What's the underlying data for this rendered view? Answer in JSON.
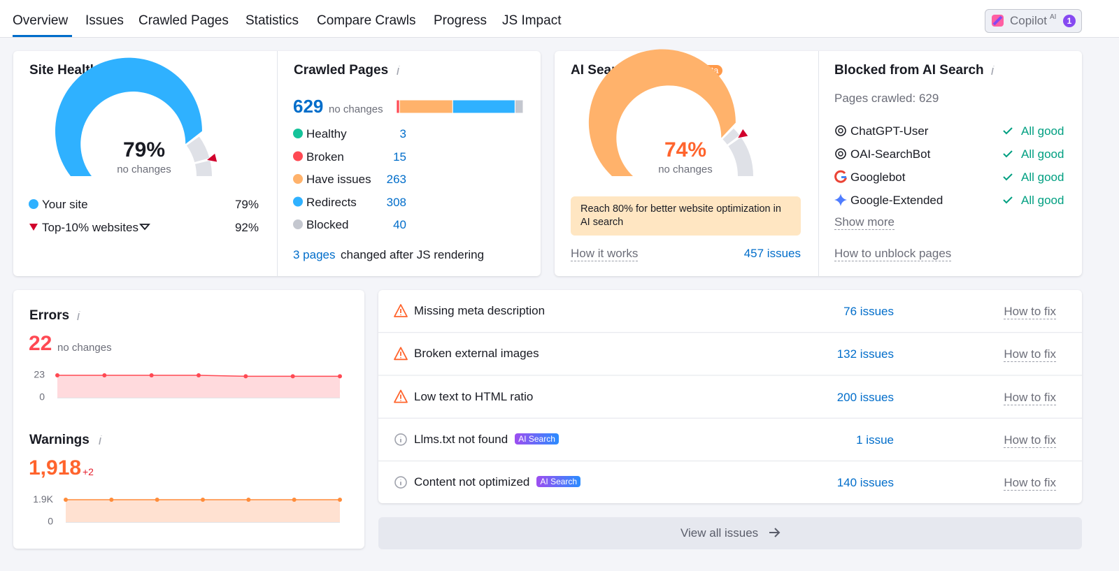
{
  "tabs": [
    "Overview",
    "Issues",
    "Crawled Pages",
    "Statistics",
    "Compare Crawls",
    "Progress",
    "JS Impact"
  ],
  "copilot": {
    "label": "Copilot",
    "sup": "AI",
    "badge": 1
  },
  "site_health": {
    "title": "Site Health",
    "score": 79,
    "score_label": "79%",
    "change": "no changes",
    "color": "#2fb1ff",
    "legend": [
      {
        "name": "Your site",
        "value_label": "79%"
      },
      {
        "name": "Top-10% websites",
        "value": 92,
        "value_label": "92%"
      }
    ]
  },
  "crawled_pages": {
    "title": "Crawled Pages",
    "total": 629,
    "change": "no changes",
    "categories": [
      {
        "name": "Healthy",
        "count": 3,
        "color": "#15c39a"
      },
      {
        "name": "Broken",
        "count": 15,
        "color": "#ff4953"
      },
      {
        "name": "Have issues",
        "count": 263,
        "color": "#ffb26b"
      },
      {
        "name": "Redirects",
        "count": 308,
        "color": "#2fb1ff"
      },
      {
        "name": "Blocked",
        "count": 40,
        "color": "#c4c7cf"
      }
    ],
    "js_link": "3 pages",
    "js_text": "changed after JS rendering"
  },
  "ai_search_health": {
    "title": "AI Search Health",
    "badge": "beta",
    "score": 74,
    "score_label": "74%",
    "change": "no changes",
    "color": "#ffb26b",
    "target": 80,
    "note": "Reach 80% for better website optimization in AI search",
    "how": "How it works",
    "issues": "457 issues"
  },
  "blocked": {
    "title": "Blocked from AI Search",
    "pages": "Pages crawled: 629",
    "bots": [
      {
        "name": "ChatGPT-User",
        "status": "All good"
      },
      {
        "name": "OAI-SearchBot",
        "status": "All good"
      },
      {
        "name": "Googlebot",
        "status": "All good"
      },
      {
        "name": "Google-Extended",
        "status": "All good"
      }
    ],
    "more": "Show more",
    "unblock": "How to unblock pages"
  },
  "errors": {
    "title": "Errors",
    "count": 22,
    "change": "no changes",
    "chart": {
      "type": "line",
      "values": [
        23,
        23,
        23,
        23,
        22,
        22,
        22
      ],
      "ylim": [
        0,
        23
      ],
      "yticks": [
        0,
        23
      ],
      "color": "#ff4953",
      "fill": "#ffdadd"
    }
  },
  "warnings": {
    "title": "Warnings",
    "count": "1,918",
    "change": "+2",
    "chart": {
      "type": "line",
      "values": [
        1916,
        1916,
        1916,
        1916,
        1916,
        1916,
        1918
      ],
      "ylim": [
        0,
        1918
      ],
      "yticks": [
        0,
        {
          "value": 1900,
          "label": "1.9K"
        }
      ],
      "color": "#ff8c3a",
      "fill": "#ffe1d1"
    }
  },
  "issues": {
    "rows": [
      {
        "icon": "warning",
        "name": "Missing meta description",
        "count": "76 issues",
        "action": "How to fix"
      },
      {
        "icon": "warning",
        "name": "Broken external images",
        "count": "132 issues",
        "action": "How to fix"
      },
      {
        "icon": "warning",
        "name": "Low text to HTML ratio",
        "count": "200 issues",
        "action": "How to fix"
      },
      {
        "icon": "info",
        "name": "Llms.txt not found",
        "badge": "AI Search",
        "count": "1 issue",
        "action": "How to fix"
      },
      {
        "icon": "info",
        "name": "Content not optimized",
        "badge": "AI Search",
        "count": "140 issues",
        "action": "How to fix"
      }
    ],
    "view_all": "View all issues"
  }
}
